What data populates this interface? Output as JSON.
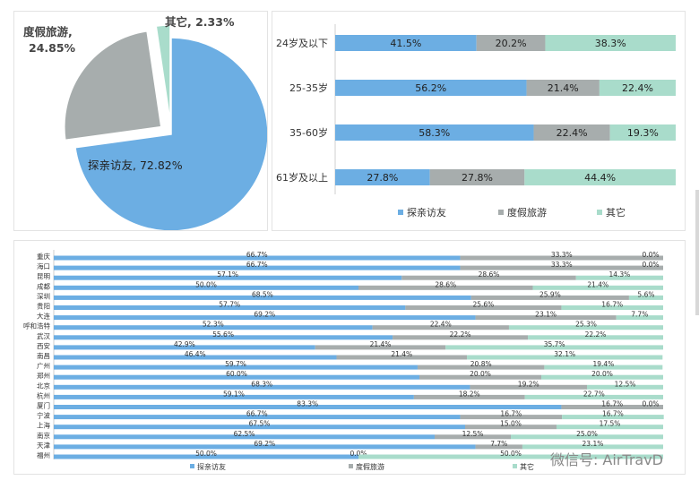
{
  "chart_data": [
    {
      "type": "pie",
      "slices": [
        {
          "label": "探亲访友",
          "value": 72.82,
          "text": "探亲访友, 72.82%",
          "color": "#6CAEE3"
        },
        {
          "label": "度假旅游",
          "value": 24.85,
          "text": "度假旅游,\n24.85%",
          "color": "#A7ADAD"
        },
        {
          "label": "其它",
          "value": 2.33,
          "text": "其它, 2.33%",
          "color": "#A9DCCB"
        }
      ]
    },
    {
      "type": "bar",
      "orientation": "horizontal",
      "stacked": "percent",
      "categories": [
        "24岁及以下",
        "25-35岁",
        "35-60岁",
        "61岁及以上"
      ],
      "series": [
        {
          "name": "探亲访友",
          "color": "#6CAEE3",
          "values": [
            41.5,
            56.2,
            58.3,
            27.8
          ]
        },
        {
          "name": "度假旅游",
          "color": "#A7ADAD",
          "values": [
            20.2,
            21.4,
            22.4,
            27.8
          ]
        },
        {
          "name": "其它",
          "color": "#A9DCCB",
          "values": [
            38.3,
            22.4,
            19.3,
            44.4
          ]
        }
      ],
      "legend": "bottom"
    },
    {
      "type": "bar",
      "orientation": "horizontal",
      "stacked": "percent",
      "categories": [
        "重庆",
        "海口",
        "昆明",
        "成都",
        "深圳",
        "贵阳",
        "大连",
        "呼和浩特",
        "武汉",
        "西安",
        "南昌",
        "广州",
        "郑州",
        "北京",
        "杭州",
        "厦门",
        "宁波",
        "上海",
        "南京",
        "天津",
        "福州"
      ],
      "series": [
        {
          "name": "探亲访友",
          "color": "#6CAEE3",
          "values": [
            66.7,
            66.7,
            57.1,
            50.0,
            68.5,
            57.7,
            69.2,
            52.3,
            55.6,
            42.9,
            46.4,
            59.7,
            60.0,
            68.3,
            59.1,
            83.3,
            66.7,
            67.5,
            62.5,
            69.2,
            50.0
          ]
        },
        {
          "name": "度假旅游",
          "color": "#A7ADAD",
          "values": [
            33.3,
            33.3,
            28.6,
            28.6,
            25.9,
            25.6,
            23.1,
            22.4,
            22.2,
            21.4,
            21.4,
            20.8,
            20.0,
            19.2,
            18.2,
            16.7,
            16.7,
            15.0,
            12.5,
            7.7,
            0.0
          ]
        },
        {
          "name": "其它",
          "color": "#A9DCCB",
          "values": [
            0.0,
            0.0,
            14.3,
            21.4,
            5.6,
            16.7,
            7.7,
            25.3,
            22.2,
            35.7,
            32.1,
            19.4,
            20.0,
            12.5,
            22.7,
            0.0,
            16.7,
            17.5,
            25.0,
            23.1,
            50.0
          ]
        }
      ],
      "legend": "bottom"
    }
  ],
  "watermark": "微信号: AirTravD"
}
